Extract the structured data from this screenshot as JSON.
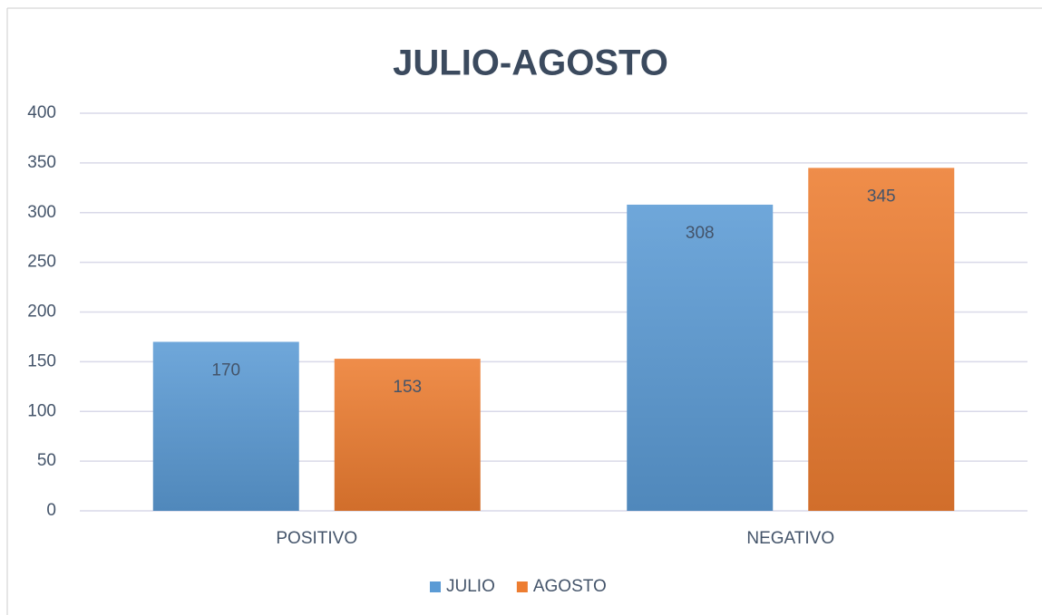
{
  "chart_data": {
    "type": "bar",
    "title": "JULIO-AGOSTO",
    "categories": [
      "POSITIVO",
      "NEGATIVO"
    ],
    "series": [
      {
        "name": "JULIO",
        "color": "#5b9bd5",
        "values": [
          170,
          308
        ]
      },
      {
        "name": "AGOSTO",
        "color": "#ed7d31",
        "values": [
          153,
          345
        ]
      }
    ],
    "ylim": [
      0,
      400
    ],
    "yticks": [
      0,
      50,
      100,
      150,
      200,
      250,
      300,
      350,
      400
    ],
    "grid": true,
    "legend": "bottom"
  }
}
